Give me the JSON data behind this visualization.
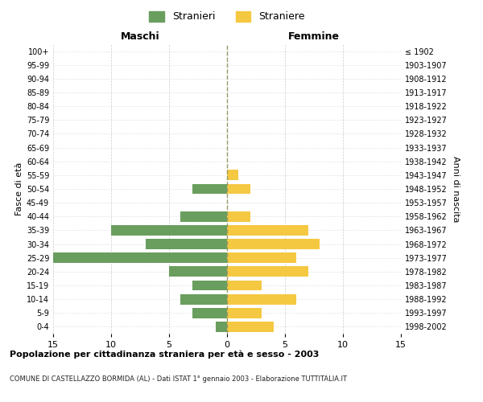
{
  "age_groups_bottom_to_top": [
    "0-4",
    "5-9",
    "10-14",
    "15-19",
    "20-24",
    "25-29",
    "30-34",
    "35-39",
    "40-44",
    "45-49",
    "50-54",
    "55-59",
    "60-64",
    "65-69",
    "70-74",
    "75-79",
    "80-84",
    "85-89",
    "90-94",
    "95-99",
    "100+"
  ],
  "birth_years_bottom_to_top": [
    "1998-2002",
    "1993-1997",
    "1988-1992",
    "1983-1987",
    "1978-1982",
    "1973-1977",
    "1968-1972",
    "1963-1967",
    "1958-1962",
    "1953-1957",
    "1948-1952",
    "1943-1947",
    "1938-1942",
    "1933-1937",
    "1928-1932",
    "1923-1927",
    "1918-1922",
    "1913-1917",
    "1908-1912",
    "1903-1907",
    "≤ 1902"
  ],
  "males_bottom_to_top": [
    1,
    3,
    4,
    3,
    5,
    15,
    7,
    10,
    4,
    0,
    3,
    0,
    0,
    0,
    0,
    0,
    0,
    0,
    0,
    0,
    0
  ],
  "females_bottom_to_top": [
    4,
    3,
    6,
    3,
    7,
    6,
    8,
    7,
    2,
    0,
    2,
    1,
    0,
    0,
    0,
    0,
    0,
    0,
    0,
    0,
    0
  ],
  "male_color": "#6a9e5e",
  "female_color": "#f5c842",
  "male_label": "Stranieri",
  "female_label": "Straniere",
  "title1": "Popolazione per cittadinanza straniera per età e sesso - 2003",
  "title2": "COMUNE DI CASTELLAZZO BORMIDA (AL) - Dati ISTAT 1° gennaio 2003 - Elaborazione TUTTITALIA.IT",
  "xlabel_left": "Maschi",
  "xlabel_right": "Femmine",
  "ylabel_left": "Fasce di età",
  "ylabel_right": "Anni di nascita",
  "xlim": 15,
  "background_color": "#ffffff",
  "grid_color": "#cccccc",
  "center_line_color": "#999966"
}
